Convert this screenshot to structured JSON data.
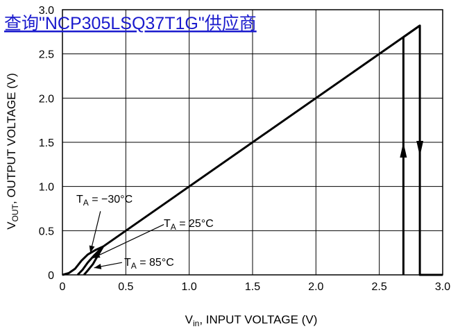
{
  "link_banner": {
    "text": "查询\"NCP305LSQ37T1G\"供应商",
    "color": "#1a1acd"
  },
  "chart_data": {
    "type": "line",
    "xlabel": {
      "main": "V",
      "sub": "in",
      "rest": ", INPUT VOLTAGE (V)"
    },
    "ylabel": {
      "main": "V",
      "sub": "OUT",
      "rest": ", OUTPUT VOLTAGE (V)"
    },
    "xlim": [
      0,
      3.0
    ],
    "ylim": [
      0,
      3.0
    ],
    "x_ticks": [
      "0",
      "0.5",
      "1.0",
      "1.5",
      "2.0",
      "2.5",
      "3.0"
    ],
    "y_ticks": [
      "0",
      "0.5",
      "1.0",
      "1.5",
      "2.0",
      "2.5",
      "3.0"
    ],
    "grid": true,
    "line_color": "#000000",
    "series": [
      {
        "curve": "main",
        "points": [
          [
            0.32,
            0.32
          ],
          [
            2.82,
            2.82
          ],
          [
            2.82,
            0
          ],
          [
            3.0,
            0
          ]
        ]
      },
      {
        "curve": "rising-edge",
        "points": [
          [
            2.69,
            0
          ],
          [
            2.69,
            2.69
          ],
          [
            2.82,
            2.82
          ]
        ]
      },
      {
        "curve": "low-temp",
        "points": [
          [
            0.0,
            0.0
          ],
          [
            0.05,
            0.02
          ],
          [
            0.1,
            0.07
          ],
          [
            0.15,
            0.16
          ],
          [
            0.2,
            0.23
          ],
          [
            0.26,
            0.28
          ],
          [
            0.32,
            0.32
          ]
        ]
      },
      {
        "curve": "room-temp",
        "points": [
          [
            0.12,
            0.0
          ],
          [
            0.16,
            0.06
          ],
          [
            0.2,
            0.14
          ],
          [
            0.25,
            0.22
          ],
          [
            0.32,
            0.32
          ]
        ]
      },
      {
        "curve": "high-temp",
        "points": [
          [
            0.17,
            0.0
          ],
          [
            0.2,
            0.05
          ],
          [
            0.24,
            0.12
          ],
          [
            0.28,
            0.22
          ],
          [
            0.32,
            0.32
          ]
        ]
      }
    ],
    "arrows": [
      {
        "x": 2.69,
        "y": 1.5,
        "direction": "up"
      },
      {
        "x": 2.82,
        "y": 1.5,
        "direction": "down"
      }
    ],
    "annotations": [
      {
        "id": "ta-minus30",
        "base": "T",
        "sub": "A",
        "rest": " = −30°C",
        "pointer_from": [
          0.3,
          0.72
        ],
        "pointer_to": [
          0.22,
          0.25
        ]
      },
      {
        "id": "ta-25",
        "base": "T",
        "sub": "A",
        "rest": " = 25°C",
        "pointer_from": [
          0.8,
          0.57
        ],
        "pointer_to": [
          0.24,
          0.19
        ]
      },
      {
        "id": "ta-85",
        "base": "T",
        "sub": "A",
        "rest": " = 85°C",
        "pointer_from": [
          0.47,
          0.14
        ],
        "pointer_to": [
          0.25,
          0.08
        ]
      }
    ]
  }
}
